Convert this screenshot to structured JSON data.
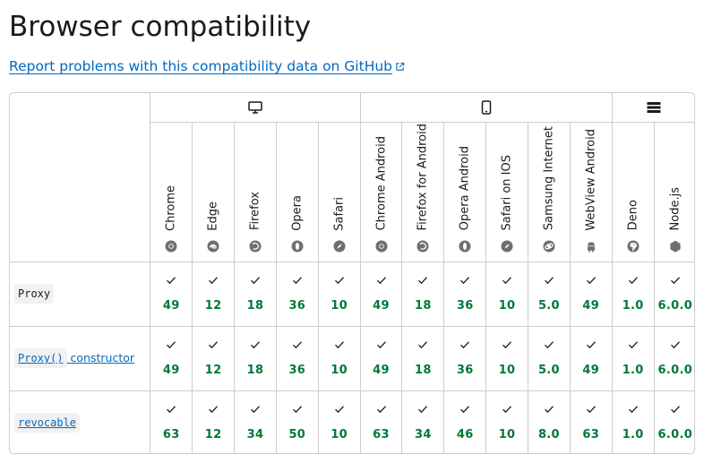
{
  "title": "Browser compatibility",
  "report_link": "Report problems with this compatibility data on GitHub",
  "browsers": [
    {
      "name": "Chrome",
      "icon": "chrome-icon"
    },
    {
      "name": "Edge",
      "icon": "edge-icon"
    },
    {
      "name": "Firefox",
      "icon": "firefox-icon"
    },
    {
      "name": "Opera",
      "icon": "opera-icon"
    },
    {
      "name": "Safari",
      "icon": "safari-icon"
    },
    {
      "name": "Chrome Android",
      "icon": "chrome-icon"
    },
    {
      "name": "Firefox for Android",
      "icon": "firefox-icon"
    },
    {
      "name": "Opera Android",
      "icon": "opera-icon"
    },
    {
      "name": "Safari on IOS",
      "icon": "safari-icon"
    },
    {
      "name": "Samsung Internet",
      "icon": "samsung-internet-icon"
    },
    {
      "name": "WebView Android",
      "icon": "android-icon"
    },
    {
      "name": "Deno",
      "icon": "deno-icon"
    },
    {
      "name": "Node.js",
      "icon": "nodejs-icon"
    }
  ],
  "platforms": [
    {
      "name": "desktop",
      "icon": "desktop-icon"
    },
    {
      "name": "mobile",
      "icon": "mobile-icon"
    },
    {
      "name": "server",
      "icon": "server-icon"
    }
  ],
  "features": [
    {
      "code": "Proxy",
      "suffix": "",
      "linked": false,
      "versions": [
        "49",
        "12",
        "18",
        "36",
        "10",
        "49",
        "18",
        "36",
        "10",
        "5.0",
        "49",
        "1.0",
        "6.0.0"
      ]
    },
    {
      "code": "Proxy()",
      "suffix": " constructor",
      "linked": true,
      "versions": [
        "49",
        "12",
        "18",
        "36",
        "10",
        "49",
        "18",
        "36",
        "10",
        "5.0",
        "49",
        "1.0",
        "6.0.0"
      ]
    },
    {
      "code": "revocable",
      "suffix": "",
      "linked": true,
      "versions": [
        "63",
        "12",
        "34",
        "50",
        "10",
        "63",
        "34",
        "46",
        "10",
        "8.0",
        "63",
        "1.0",
        "6.0.0"
      ]
    }
  ],
  "colors": {
    "accent": "#0069c2",
    "supported": "#007936",
    "border": "#cdcdcd"
  }
}
